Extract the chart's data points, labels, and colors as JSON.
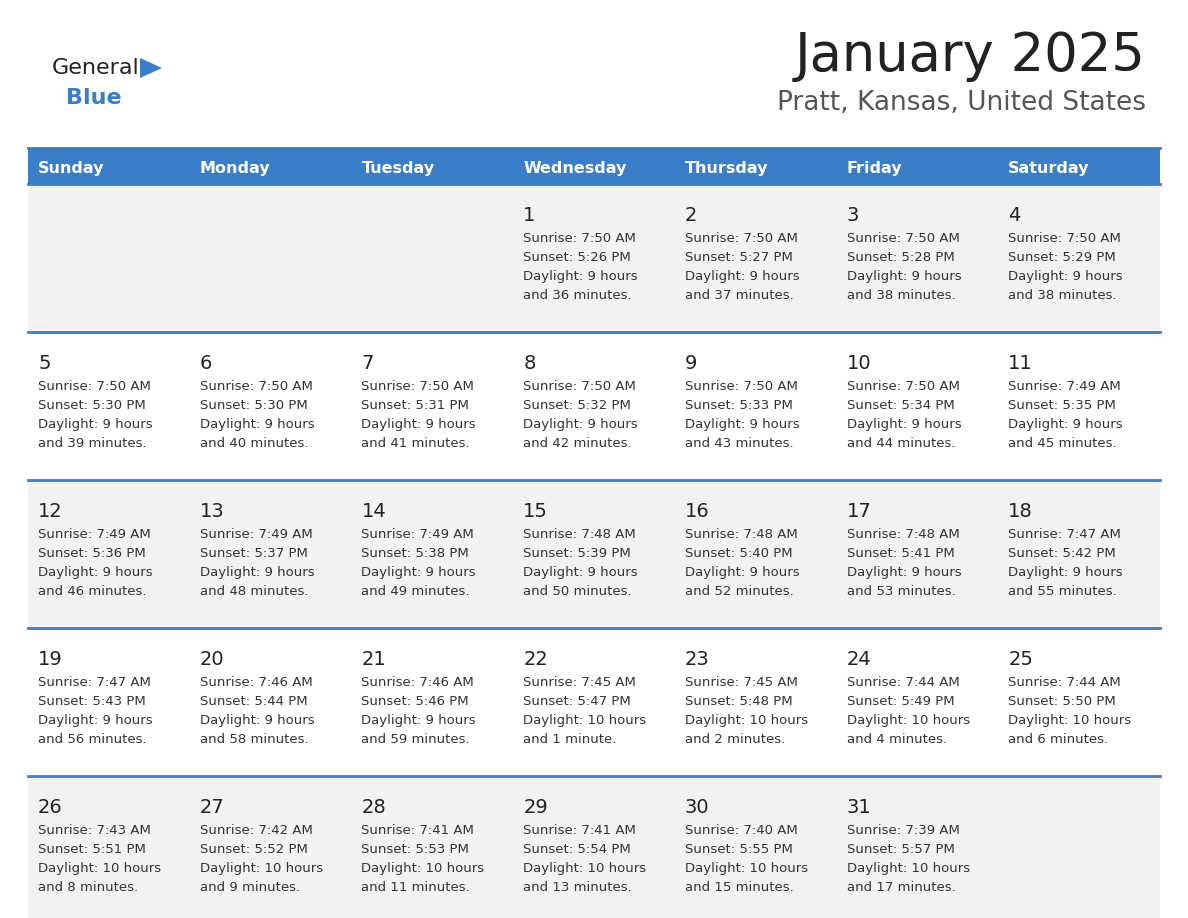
{
  "title": "January 2025",
  "subtitle": "Pratt, Kansas, United States",
  "header_bg": "#3A7DC9",
  "header_text_color": "#FFFFFF",
  "row0_bg": "#F2F2F2",
  "row1_bg": "#FFFFFF",
  "row2_bg": "#F2F2F2",
  "row3_bg": "#FFFFFF",
  "row4_bg": "#F2F2F2",
  "border_color": "#3A7DC9",
  "text_color": "#333333",
  "days_of_week": [
    "Sunday",
    "Monday",
    "Tuesday",
    "Wednesday",
    "Thursday",
    "Friday",
    "Saturday"
  ],
  "calendar": [
    [
      {
        "day": "",
        "sunrise": "",
        "sunset": "",
        "daylight_line1": "",
        "daylight_line2": ""
      },
      {
        "day": "",
        "sunrise": "",
        "sunset": "",
        "daylight_line1": "",
        "daylight_line2": ""
      },
      {
        "day": "",
        "sunrise": "",
        "sunset": "",
        "daylight_line1": "",
        "daylight_line2": ""
      },
      {
        "day": "1",
        "sunrise": "7:50 AM",
        "sunset": "5:26 PM",
        "daylight_line1": "9 hours",
        "daylight_line2": "and 36 minutes."
      },
      {
        "day": "2",
        "sunrise": "7:50 AM",
        "sunset": "5:27 PM",
        "daylight_line1": "9 hours",
        "daylight_line2": "and 37 minutes."
      },
      {
        "day": "3",
        "sunrise": "7:50 AM",
        "sunset": "5:28 PM",
        "daylight_line1": "9 hours",
        "daylight_line2": "and 38 minutes."
      },
      {
        "day": "4",
        "sunrise": "7:50 AM",
        "sunset": "5:29 PM",
        "daylight_line1": "9 hours",
        "daylight_line2": "and 38 minutes."
      }
    ],
    [
      {
        "day": "5",
        "sunrise": "7:50 AM",
        "sunset": "5:30 PM",
        "daylight_line1": "9 hours",
        "daylight_line2": "and 39 minutes."
      },
      {
        "day": "6",
        "sunrise": "7:50 AM",
        "sunset": "5:30 PM",
        "daylight_line1": "9 hours",
        "daylight_line2": "and 40 minutes."
      },
      {
        "day": "7",
        "sunrise": "7:50 AM",
        "sunset": "5:31 PM",
        "daylight_line1": "9 hours",
        "daylight_line2": "and 41 minutes."
      },
      {
        "day": "8",
        "sunrise": "7:50 AM",
        "sunset": "5:32 PM",
        "daylight_line1": "9 hours",
        "daylight_line2": "and 42 minutes."
      },
      {
        "day": "9",
        "sunrise": "7:50 AM",
        "sunset": "5:33 PM",
        "daylight_line1": "9 hours",
        "daylight_line2": "and 43 minutes."
      },
      {
        "day": "10",
        "sunrise": "7:50 AM",
        "sunset": "5:34 PM",
        "daylight_line1": "9 hours",
        "daylight_line2": "and 44 minutes."
      },
      {
        "day": "11",
        "sunrise": "7:49 AM",
        "sunset": "5:35 PM",
        "daylight_line1": "9 hours",
        "daylight_line2": "and 45 minutes."
      }
    ],
    [
      {
        "day": "12",
        "sunrise": "7:49 AM",
        "sunset": "5:36 PM",
        "daylight_line1": "9 hours",
        "daylight_line2": "and 46 minutes."
      },
      {
        "day": "13",
        "sunrise": "7:49 AM",
        "sunset": "5:37 PM",
        "daylight_line1": "9 hours",
        "daylight_line2": "and 48 minutes."
      },
      {
        "day": "14",
        "sunrise": "7:49 AM",
        "sunset": "5:38 PM",
        "daylight_line1": "9 hours",
        "daylight_line2": "and 49 minutes."
      },
      {
        "day": "15",
        "sunrise": "7:48 AM",
        "sunset": "5:39 PM",
        "daylight_line1": "9 hours",
        "daylight_line2": "and 50 minutes."
      },
      {
        "day": "16",
        "sunrise": "7:48 AM",
        "sunset": "5:40 PM",
        "daylight_line1": "9 hours",
        "daylight_line2": "and 52 minutes."
      },
      {
        "day": "17",
        "sunrise": "7:48 AM",
        "sunset": "5:41 PM",
        "daylight_line1": "9 hours",
        "daylight_line2": "and 53 minutes."
      },
      {
        "day": "18",
        "sunrise": "7:47 AM",
        "sunset": "5:42 PM",
        "daylight_line1": "9 hours",
        "daylight_line2": "and 55 minutes."
      }
    ],
    [
      {
        "day": "19",
        "sunrise": "7:47 AM",
        "sunset": "5:43 PM",
        "daylight_line1": "9 hours",
        "daylight_line2": "and 56 minutes."
      },
      {
        "day": "20",
        "sunrise": "7:46 AM",
        "sunset": "5:44 PM",
        "daylight_line1": "9 hours",
        "daylight_line2": "and 58 minutes."
      },
      {
        "day": "21",
        "sunrise": "7:46 AM",
        "sunset": "5:46 PM",
        "daylight_line1": "9 hours",
        "daylight_line2": "and 59 minutes."
      },
      {
        "day": "22",
        "sunrise": "7:45 AM",
        "sunset": "5:47 PM",
        "daylight_line1": "10 hours",
        "daylight_line2": "and 1 minute."
      },
      {
        "day": "23",
        "sunrise": "7:45 AM",
        "sunset": "5:48 PM",
        "daylight_line1": "10 hours",
        "daylight_line2": "and 2 minutes."
      },
      {
        "day": "24",
        "sunrise": "7:44 AM",
        "sunset": "5:49 PM",
        "daylight_line1": "10 hours",
        "daylight_line2": "and 4 minutes."
      },
      {
        "day": "25",
        "sunrise": "7:44 AM",
        "sunset": "5:50 PM",
        "daylight_line1": "10 hours",
        "daylight_line2": "and 6 minutes."
      }
    ],
    [
      {
        "day": "26",
        "sunrise": "7:43 AM",
        "sunset": "5:51 PM",
        "daylight_line1": "10 hours",
        "daylight_line2": "and 8 minutes."
      },
      {
        "day": "27",
        "sunrise": "7:42 AM",
        "sunset": "5:52 PM",
        "daylight_line1": "10 hours",
        "daylight_line2": "and 9 minutes."
      },
      {
        "day": "28",
        "sunrise": "7:41 AM",
        "sunset": "5:53 PM",
        "daylight_line1": "10 hours",
        "daylight_line2": "and 11 minutes."
      },
      {
        "day": "29",
        "sunrise": "7:41 AM",
        "sunset": "5:54 PM",
        "daylight_line1": "10 hours",
        "daylight_line2": "and 13 minutes."
      },
      {
        "day": "30",
        "sunrise": "7:40 AM",
        "sunset": "5:55 PM",
        "daylight_line1": "10 hours",
        "daylight_line2": "and 15 minutes."
      },
      {
        "day": "31",
        "sunrise": "7:39 AM",
        "sunset": "5:57 PM",
        "daylight_line1": "10 hours",
        "daylight_line2": "and 17 minutes."
      },
      {
        "day": "",
        "sunrise": "",
        "sunset": "",
        "daylight_line1": "",
        "daylight_line2": ""
      }
    ]
  ]
}
